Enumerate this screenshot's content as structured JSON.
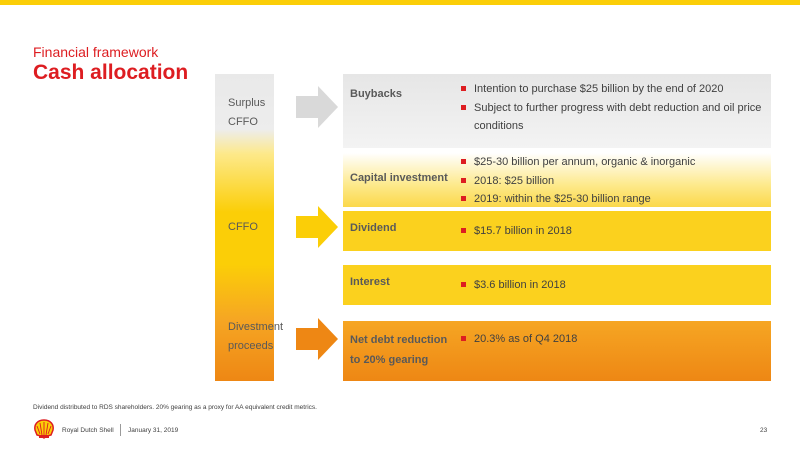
{
  "header": {
    "subtitle": "Financial framework",
    "title": "Cash allocation"
  },
  "sources": {
    "surplus": [
      "Surplus",
      "CFFO"
    ],
    "cffo": "CFFO",
    "divestment": [
      "Divestment",
      "proceeds"
    ]
  },
  "allocations": [
    {
      "title": [
        "Buybacks"
      ],
      "bullets": [
        "Intention to purchase $25 billion by the end of 2020",
        "Subject to further progress with debt reduction and oil price",
        "conditions"
      ]
    },
    {
      "title": [
        "Capital investment"
      ],
      "bullets": [
        "$25-30 billion per annum, organic & inorganic",
        "2018: $25 billion",
        "2019: within the $25-30 billion range"
      ]
    },
    {
      "title": [
        "Dividend"
      ],
      "bullets": [
        "$15.7 billion in 2018"
      ]
    },
    {
      "title": [
        "Interest"
      ],
      "bullets": [
        "$3.6 billion in 2018"
      ]
    },
    {
      "title": [
        "Net debt reduction",
        "to 20% gearing"
      ],
      "bullets": [
        "20.3% as of Q4 2018"
      ]
    }
  ],
  "footnote": "Dividend distributed to RDS shareholders. 20% gearing as a proxy for AA equivalent credit metrics.",
  "footer": {
    "company": "Royal Dutch Shell",
    "date": "January 31, 2019",
    "page": "23"
  },
  "colors": {
    "red": "#dd1d21",
    "yellow": "#fbce07",
    "orange": "#ee8714",
    "gray": "#e0e0e0"
  }
}
